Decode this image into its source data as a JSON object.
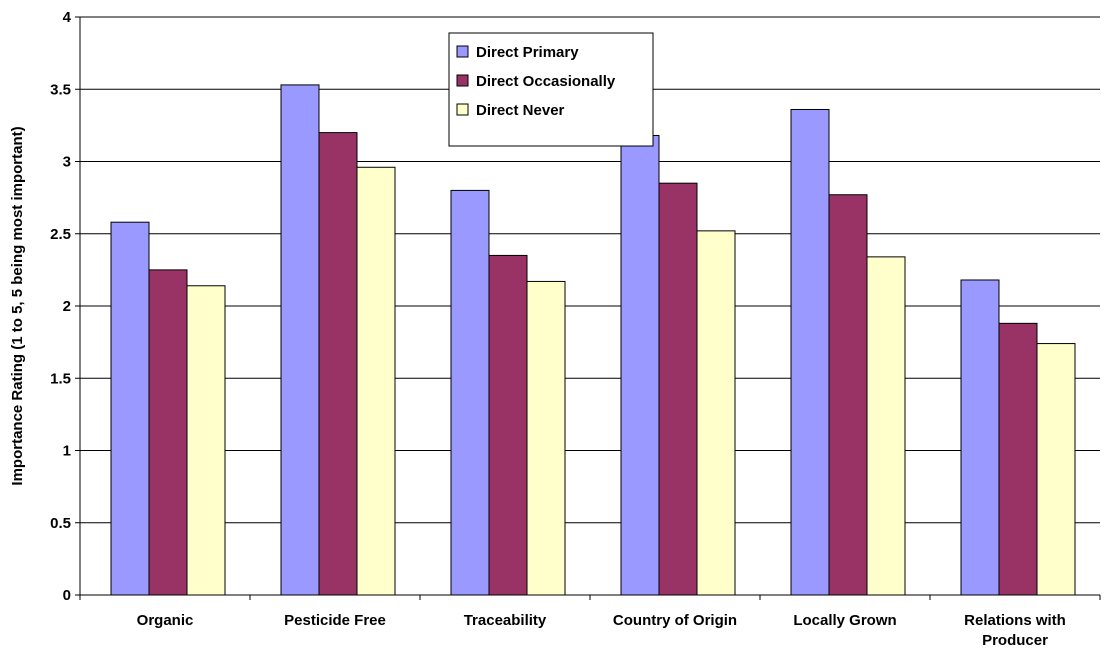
{
  "chart_data": {
    "type": "bar",
    "title": "",
    "xlabel": "",
    "ylabel": "Importance Rating (1 to 5, 5 being most important)",
    "ylim": [
      0,
      4
    ],
    "yticks": [
      0,
      0.5,
      1,
      1.5,
      2,
      2.5,
      3,
      3.5,
      4
    ],
    "grid": true,
    "legend_position": "top-center",
    "categories": [
      [
        "Organic"
      ],
      [
        "Pesticide Free"
      ],
      [
        "Traceability"
      ],
      [
        "Country of Origin"
      ],
      [
        "Locally Grown"
      ],
      [
        "Relations with",
        "Producer"
      ]
    ],
    "series": [
      {
        "name": "Direct Primary",
        "color": "#9999FF",
        "values": [
          2.58,
          3.53,
          2.8,
          3.18,
          3.36,
          2.18
        ]
      },
      {
        "name": "Direct Occasionally",
        "color": "#993366",
        "values": [
          2.25,
          3.2,
          2.35,
          2.85,
          2.77,
          1.88
        ]
      },
      {
        "name": "Direct Never",
        "color": "#FFFFCC",
        "values": [
          2.14,
          2.96,
          2.17,
          2.52,
          2.34,
          1.74
        ]
      }
    ]
  }
}
